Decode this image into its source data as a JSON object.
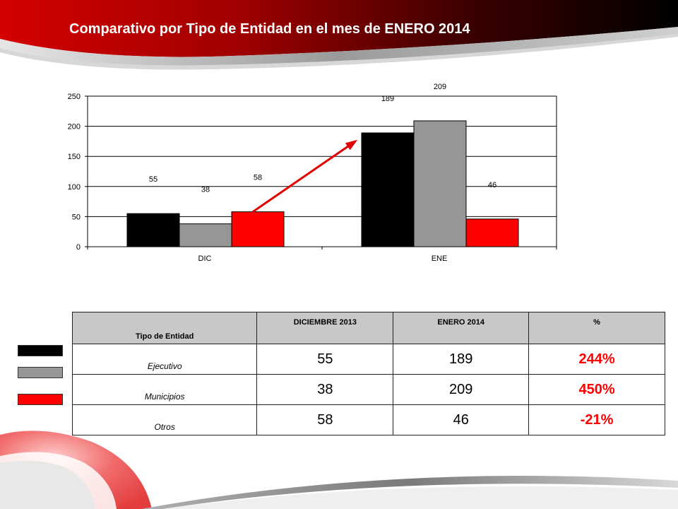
{
  "title": "Comparativo por Tipo de Entidad en el mes de ENERO 2014",
  "colors": {
    "ejecutivo": "#000000",
    "municipios": "#969696",
    "otros": "#ff0000",
    "accent": "#c00000"
  },
  "chart_data": {
    "type": "bar",
    "categories": [
      "DIC",
      "ENE"
    ],
    "series": [
      {
        "values": [
          55,
          189
        ],
        "color": "#000000"
      },
      {
        "values": [
          38,
          209
        ],
        "color": "#969696"
      },
      {
        "values": [
          58,
          46
        ],
        "color": "#ff0000"
      }
    ],
    "ylim": [
      0,
      250
    ],
    "yticks": [
      0,
      50,
      100,
      150,
      200,
      250
    ],
    "grid": true,
    "data_labels": true,
    "annotation": "red arrow from DIC Otros bar toward ENE bars"
  },
  "table": {
    "headers": [
      "Tipo de Entidad",
      "DICIEMBRE  2013",
      "ENERO 2014",
      "%"
    ],
    "rows": [
      {
        "entity": "Ejecutivo",
        "dic": "55",
        "ene": "189",
        "pct": "244%"
      },
      {
        "entity": "Municipios",
        "dic": "38",
        "ene": "209",
        "pct": "450%"
      },
      {
        "entity": "Otros",
        "dic": "58",
        "ene": "46",
        "pct": "-21%"
      }
    ]
  }
}
